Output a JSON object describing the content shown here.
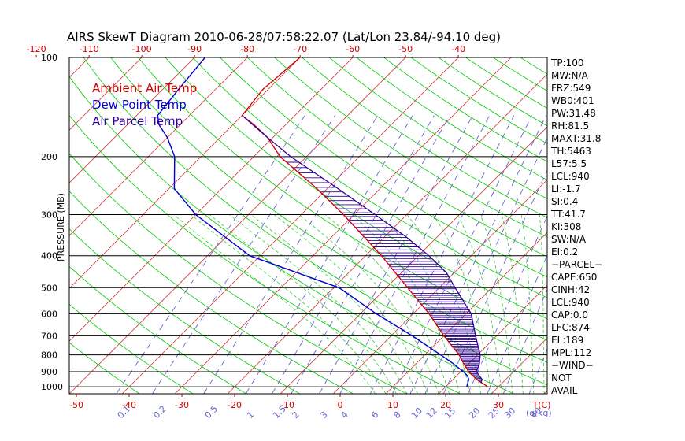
{
  "chart_data": {
    "type": "line",
    "title": "AIRS SkewT Diagram 2010-06-28/07:58:22.07 (Lat/Lon 23.84/-94.10 deg)",
    "ylabel": "PRESSURE (MB)",
    "y_scale": "log",
    "y_ticks": [
      "100",
      "200",
      "300",
      "400",
      "500",
      "600",
      "700",
      "800",
      "900",
      "1000"
    ],
    "ylim": [
      100,
      1050
    ],
    "x_bottom_ticks": [
      "-50",
      "-40",
      "-30",
      "-20",
      "-10",
      "0",
      "10",
      "20",
      "30"
    ],
    "x_bottom_unit": "T(C)",
    "x_top_ticks": [
      "-120",
      "-110",
      "-100",
      "-90",
      "-80",
      "-70",
      "-60",
      "-50",
      "-40"
    ],
    "mixing_ratio_ticks": [
      "0.1",
      "0.2",
      "0.5",
      "1",
      "1.5",
      "2",
      "3",
      "4",
      "6",
      "8",
      "10",
      "12",
      "15",
      "20",
      "25",
      "30",
      "40"
    ],
    "mixing_ratio_unit": "(g/kg)",
    "legend": [
      "Ambient Air Temp",
      "Dew Point Temp",
      "Air Parcel Temp"
    ],
    "colors": {
      "ambient": "#cc0000",
      "dewpoint": "#0000cc",
      "parcel": "#330099",
      "isotherm": "#cc3333",
      "dry_adiabat": "#00cc00",
      "moist_adiabat": "#33cc33",
      "mixing_ratio": "#6666cc",
      "isobar": "#000000"
    },
    "series": [
      {
        "name": "Ambient Air Temp",
        "p": [
          1000,
          950,
          925,
          900,
          850,
          800,
          700,
          600,
          500,
          400,
          300,
          250,
          200,
          175,
          160,
          150,
          125,
          100
        ],
        "t": [
          28,
          24.5,
          23,
          21.5,
          19,
          16.5,
          10,
          3,
          -6,
          -17,
          -32,
          -42,
          -55,
          -61,
          -66,
          -70,
          -71,
          -70
        ]
      },
      {
        "name": "Dew Point Temp",
        "p": [
          1000,
          950,
          925,
          900,
          850,
          800,
          700,
          600,
          500,
          400,
          300,
          250,
          200,
          175,
          160,
          150,
          125,
          100
        ],
        "t": [
          24,
          23,
          22,
          20.5,
          17,
          13,
          4,
          -7,
          -19,
          -42,
          -60,
          -69,
          -75,
          -80,
          -84,
          -86,
          -87,
          -88
        ]
      },
      {
        "name": "Air Parcel Temp",
        "p": [
          975,
          950,
          900,
          850,
          800,
          700,
          600,
          500,
          450,
          400,
          350,
          300,
          250,
          200,
          175,
          150
        ],
        "t": [
          26,
          25.5,
          23,
          22,
          20.5,
          16,
          11,
          3,
          -1.5,
          -8,
          -16,
          -26,
          -38,
          -53,
          -61,
          -70
        ]
      }
    ],
    "indices": [
      "TP:100",
      "MW:N/A",
      "FRZ:549",
      "WB0:401",
      "PW:31.48",
      "RH:81.5",
      "MAXT:31.8",
      "TH:5463",
      "L57:5.5",
      "LCL:940",
      "LI:-1.7",
      "SI:0.4",
      "TT:41.7",
      "KI:308",
      "SW:N/A",
      "EI:0.2",
      "−PARCEL−",
      "CAPE:650",
      "CINH:42",
      "LCL:940",
      "CAP:0.0",
      "LFC:874",
      "EL:189",
      "MPL:112",
      "−WIND−",
      "NOT",
      "AVAIL"
    ]
  }
}
